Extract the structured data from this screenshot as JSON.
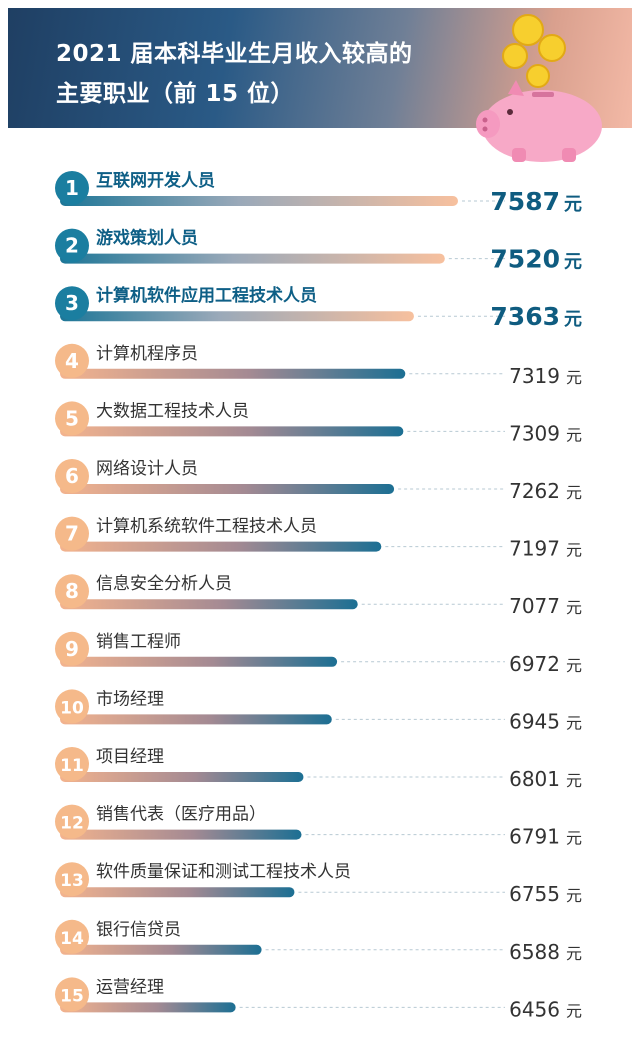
{
  "header": {
    "title_line1": "2021 届本科毕业生月收入较高的",
    "title_line2": "主要职业（前 15 位）"
  },
  "chart_data": {
    "type": "bar",
    "orientation": "horizontal",
    "unit": "元",
    "categories": [
      "互联网开发人员",
      "游戏策划人员",
      "计算机软件应用工程技术人员",
      "计算机程序员",
      "大数据工程技术人员",
      "网络设计人员",
      "计算机系统软件工程技术人员",
      "信息安全分析人员",
      "销售工程师",
      "市场经理",
      "项目经理",
      "销售代表（医疗用品）",
      "软件质量保证和测试工程技术人员",
      "银行信贷员",
      "运营经理"
    ],
    "ranks": [
      "1",
      "2",
      "3",
      "4",
      "5",
      "6",
      "7",
      "8",
      "9",
      "10",
      "11",
      "12",
      "13",
      "14",
      "15"
    ],
    "values": [
      7587,
      7520,
      7363,
      7319,
      7309,
      7262,
      7197,
      7077,
      6972,
      6945,
      6801,
      6791,
      6755,
      6588,
      6456
    ],
    "highlight_top": 3,
    "colors": {
      "top_badge": "#1b7ea0",
      "top_label": "#0e5f86",
      "other_badge": "#f5b98a",
      "top_bar_start": "#f7c09e",
      "top_bar_end": "#1d7697",
      "other_bar_start": "#f3b38e",
      "other_bar_end": "#1c6f93",
      "value_text": "#333333",
      "top_value_text": "#0f5c80"
    }
  }
}
